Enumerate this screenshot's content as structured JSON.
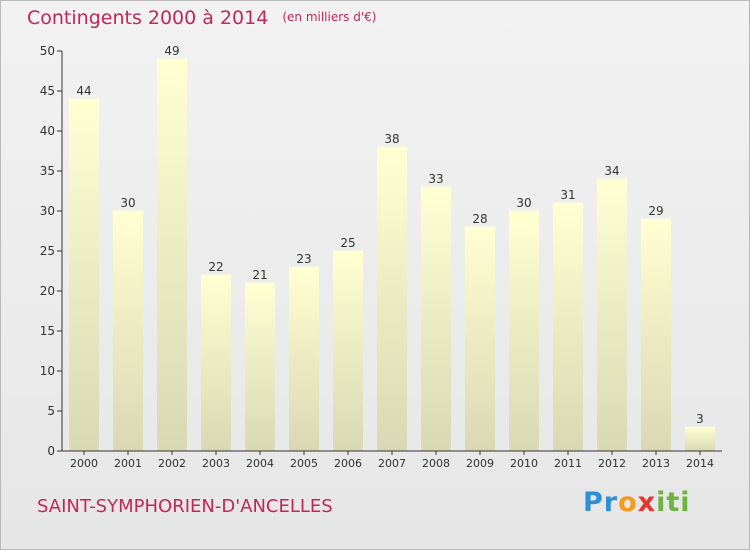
{
  "header": {
    "title": "Contingents 2000 à 2014",
    "unit": "(en milliers d'€)"
  },
  "footer": {
    "commune": "SAINT-SYMPHORIEN-D'ANCELLES",
    "logo_text": "Proxiti"
  },
  "colors": {
    "title": "#c0285a",
    "bar_top": "#ffffd2",
    "bar_bottom": "#d8d8b4",
    "axis": "#333333"
  },
  "chart_data": {
    "type": "bar",
    "title": "Contingents 2000 à 2014",
    "subtitle": "(en milliers d'€)",
    "xlabel": "",
    "ylabel": "",
    "categories": [
      "2000",
      "2001",
      "2002",
      "2003",
      "2004",
      "2005",
      "2006",
      "2007",
      "2008",
      "2009",
      "2010",
      "2011",
      "2012",
      "2013",
      "2014"
    ],
    "values": [
      44,
      30,
      49,
      22,
      21,
      23,
      25,
      38,
      33,
      28,
      30,
      31,
      34,
      29,
      3
    ],
    "ylim": [
      0,
      50
    ],
    "yticks": [
      0,
      5,
      10,
      15,
      20,
      25,
      30,
      35,
      40,
      45,
      50
    ],
    "grid": false,
    "data_labels": true
  }
}
